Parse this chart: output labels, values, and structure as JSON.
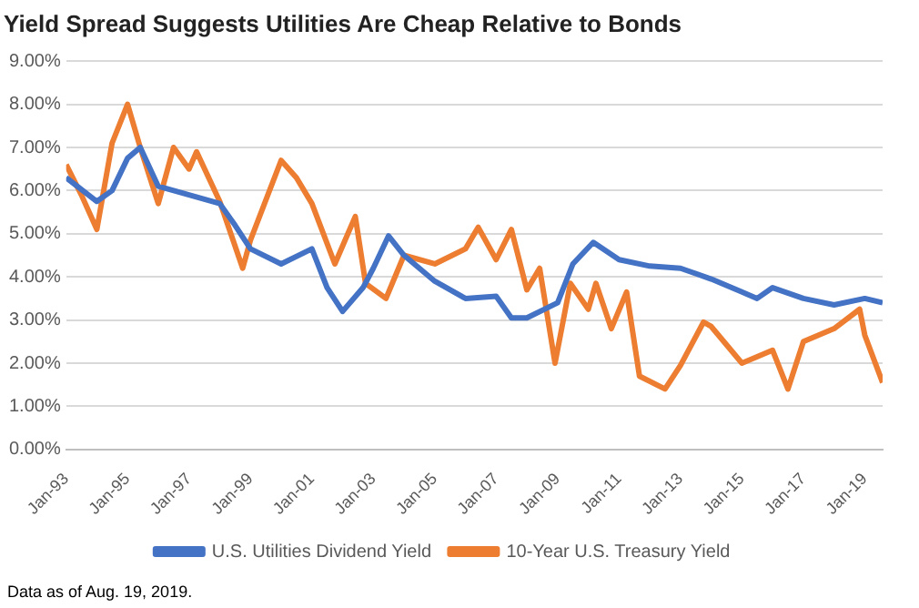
{
  "chart_data": {
    "type": "line",
    "title": "Yield Spread Suggests Utilities Are Cheap Relative to Bonds",
    "annotations": [
      "Data as of Aug. 19, 2019."
    ],
    "xlim": [
      "1993-01",
      "2019-08"
    ],
    "xticks": [
      {
        "value": "1993-01",
        "label": "Jan-93"
      },
      {
        "value": "1995-01",
        "label": "Jan-95"
      },
      {
        "value": "1997-01",
        "label": "Jan-97"
      },
      {
        "value": "1999-01",
        "label": "Jan-99"
      },
      {
        "value": "2001-01",
        "label": "Jan-01"
      },
      {
        "value": "2003-01",
        "label": "Jan-03"
      },
      {
        "value": "2005-01",
        "label": "Jan-05"
      },
      {
        "value": "2007-01",
        "label": "Jan-07"
      },
      {
        "value": "2009-01",
        "label": "Jan-09"
      },
      {
        "value": "2011-01",
        "label": "Jan-11"
      },
      {
        "value": "2013-01",
        "label": "Jan-13"
      },
      {
        "value": "2015-01",
        "label": "Jan-15"
      },
      {
        "value": "2017-01",
        "label": "Jan-17"
      },
      {
        "value": "2019-01",
        "label": "Jan-19"
      }
    ],
    "ylim": [
      0,
      9
    ],
    "yticks": [
      {
        "value": 0,
        "label": "0.00%"
      },
      {
        "value": 1,
        "label": "1.00%"
      },
      {
        "value": 2,
        "label": "2.00%"
      },
      {
        "value": 3,
        "label": "3.00%"
      },
      {
        "value": 4,
        "label": "4.00%"
      },
      {
        "value": 5,
        "label": "5.00%"
      },
      {
        "value": 6,
        "label": "6.00%"
      },
      {
        "value": 7,
        "label": "7.00%"
      },
      {
        "value": 8,
        "label": "8.00%"
      },
      {
        "value": 9,
        "label": "9.00%"
      }
    ],
    "grid": "y",
    "legend": "bottom",
    "marker": "none",
    "line_style": "solid",
    "series": [
      {
        "name": "U.S. Utilities Dividend Yield",
        "color": "#4472c4",
        "x": [
          "1993-01",
          "1994-01",
          "1994-07",
          "1995-01",
          "1995-06",
          "1996-01",
          "1997-01",
          "1998-01",
          "1998-07",
          "1999-01",
          "2000-01",
          "2001-01",
          "2001-07",
          "2002-01",
          "2002-09",
          "2003-01",
          "2003-07",
          "2004-01",
          "2005-01",
          "2006-01",
          "2007-01",
          "2007-07",
          "2008-01",
          "2009-01",
          "2009-07",
          "2010-03",
          "2011-01",
          "2012-01",
          "2013-01",
          "2014-01",
          "2015-01",
          "2015-07",
          "2016-01",
          "2017-01",
          "2018-01",
          "2019-01",
          "2019-08"
        ],
        "values": [
          6.3,
          5.75,
          6.0,
          6.75,
          7.0,
          6.1,
          5.9,
          5.7,
          5.2,
          4.65,
          4.3,
          4.65,
          3.75,
          3.2,
          3.75,
          4.2,
          4.95,
          4.5,
          3.9,
          3.5,
          3.55,
          3.05,
          3.05,
          3.4,
          4.3,
          4.8,
          4.4,
          4.25,
          4.2,
          3.95,
          3.65,
          3.5,
          3.75,
          3.5,
          3.35,
          3.5,
          3.4
        ]
      },
      {
        "name": "10-Year U.S. Treasury Yield",
        "color": "#ed7d31",
        "x": [
          "1993-01",
          "1993-07",
          "1994-01",
          "1994-07",
          "1995-01",
          "1995-06",
          "1996-01",
          "1996-07",
          "1997-01",
          "1997-04",
          "1998-01",
          "1998-10",
          "1999-01",
          "2000-01",
          "2000-07",
          "2001-01",
          "2001-10",
          "2002-06",
          "2002-10",
          "2003-06",
          "2004-01",
          "2005-01",
          "2006-01",
          "2006-06",
          "2007-01",
          "2007-07",
          "2008-01",
          "2008-06",
          "2008-12",
          "2009-06",
          "2010-01",
          "2010-04",
          "2010-10",
          "2011-04",
          "2011-09",
          "2012-07",
          "2013-01",
          "2013-10",
          "2014-01",
          "2015-01",
          "2016-01",
          "2016-07",
          "2017-01",
          "2018-01",
          "2018-11",
          "2019-01",
          "2019-08"
        ],
        "values": [
          6.6,
          5.9,
          5.1,
          7.1,
          8.0,
          7.0,
          5.7,
          7.0,
          6.5,
          6.9,
          5.75,
          4.2,
          4.85,
          6.7,
          6.3,
          5.7,
          4.3,
          5.4,
          3.85,
          3.5,
          4.5,
          4.3,
          4.65,
          5.15,
          4.4,
          5.1,
          3.7,
          4.2,
          2.0,
          3.85,
          3.25,
          3.85,
          2.8,
          3.65,
          1.7,
          1.4,
          1.95,
          2.95,
          2.85,
          2.0,
          2.3,
          1.4,
          2.5,
          2.8,
          3.25,
          2.65,
          1.55
        ]
      }
    ]
  }
}
